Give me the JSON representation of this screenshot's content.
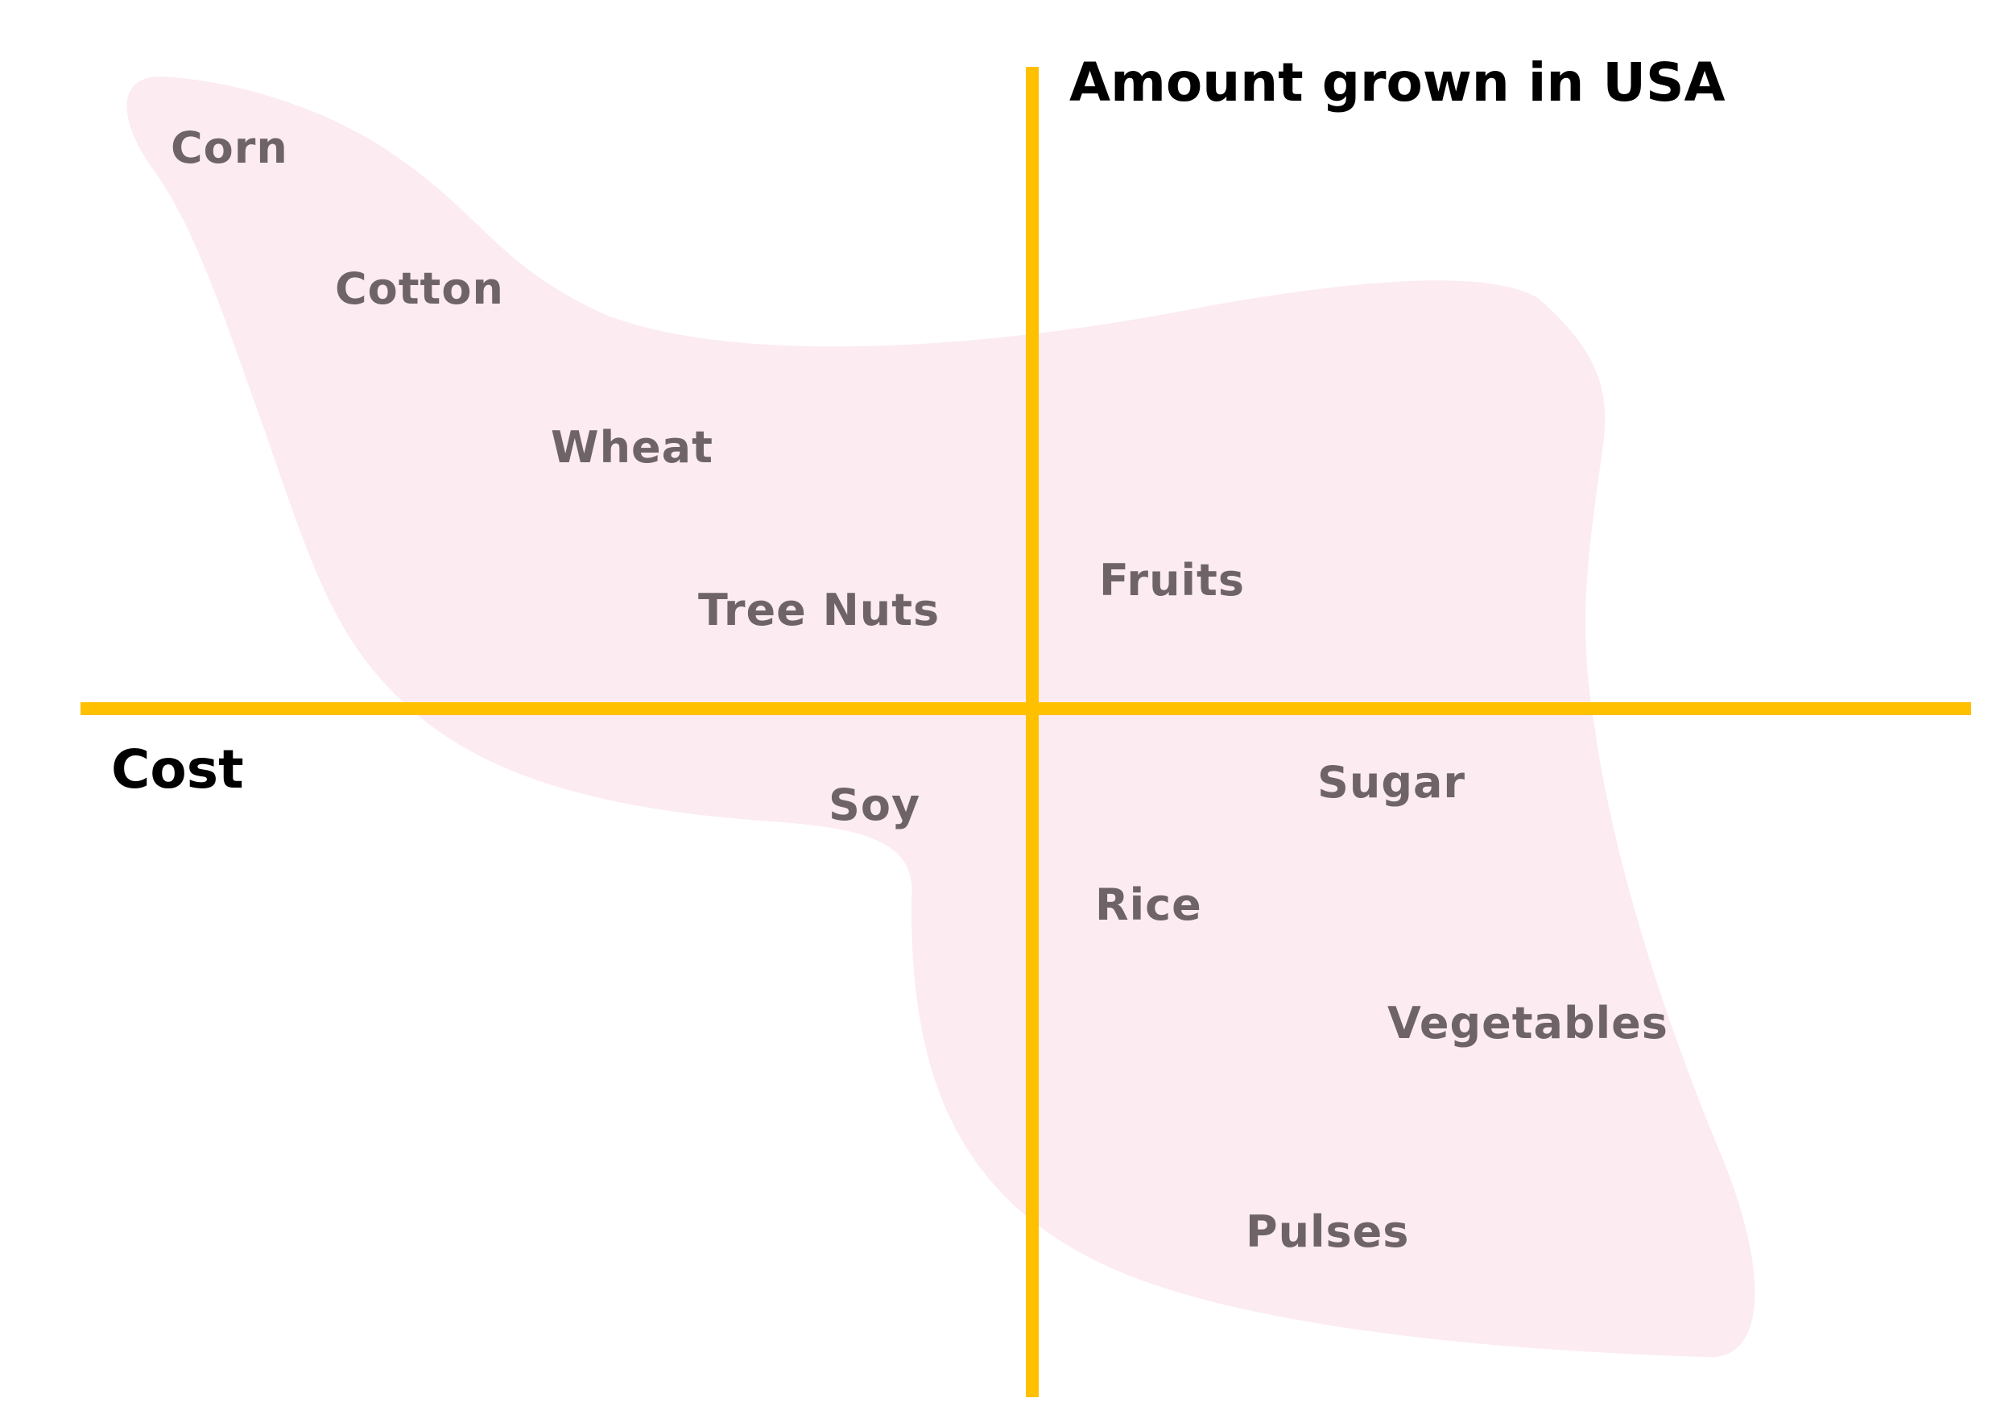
{
  "axes": {
    "vertical_title": "Amount grown in USA",
    "horizontal_title": "Cost"
  },
  "colors": {
    "axis": "#ffc000",
    "blob": "#fce8ee",
    "label": "#6e6468",
    "title": "#000000"
  },
  "crops": [
    {
      "name": "Corn"
    },
    {
      "name": "Cotton"
    },
    {
      "name": "Wheat"
    },
    {
      "name": "Tree Nuts"
    },
    {
      "name": "Fruits"
    },
    {
      "name": "Soy"
    },
    {
      "name": "Sugar"
    },
    {
      "name": "Rice"
    },
    {
      "name": "Vegetables"
    },
    {
      "name": "Pulses"
    }
  ]
}
